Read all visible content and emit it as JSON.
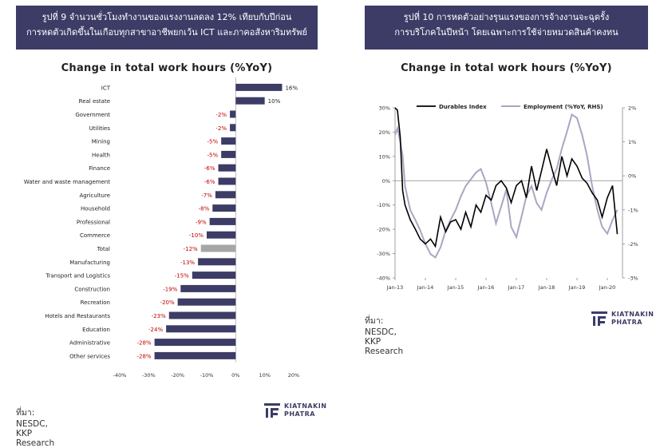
{
  "left": {
    "banner_line1": "รูปที่ 9 จำนวนชั่วโมงทำงานของแรงงานลดลง 12% เทียบกับปีก่อน",
    "banner_line2": "การหดตัวเกิดขึ้นในเกือบทุกสาขาอาชีพยกเว้น ICT และภาคอสังหาริมทรัพย์",
    "source": "ที่มา: NESDC, KKP Research",
    "logo_line1": "KIATNAKIN",
    "logo_line2": "PHATRA"
  },
  "right": {
    "banner_line1": "รูปที่ 10 การหดตัวอย่างรุนแรงของการจ้างงานจะฉุดรั้ง",
    "banner_line2": "การบริโภคในปีหน้า โดยเฉพาะการใช้จ่ายหมวดสินค้าคงทน",
    "source": "ที่มา: NESDC, KKP Research",
    "logo_line1": "KIATNAKIN",
    "logo_line2": "PHATRA"
  },
  "colors": {
    "banner": "#3d3c66",
    "bar": "#3d3c66",
    "bar_total": "#a6a6a6",
    "neg_label": "#c00000",
    "durables": "#000000",
    "employment": "#a9a6c2"
  },
  "chart_data": [
    {
      "type": "bar",
      "orientation": "horizontal",
      "title": "Change in total work hours (%YoY)",
      "categories": [
        "ICT",
        "Real estate",
        "Government",
        "Utilities",
        "Mining",
        "Health",
        "Finance",
        "Water and waste management",
        "Agriculture",
        "Household",
        "Professional",
        "Commerce",
        "Total",
        "Manufacturing",
        "Transport and Logistics",
        "Construction",
        "Recreation",
        "Hotels and Restaurants",
        "Education",
        "Administrative",
        "Other services"
      ],
      "values": [
        16,
        10,
        -2,
        -2,
        -5,
        -5,
        -6,
        -6,
        -7,
        -8,
        -9,
        -10,
        -12,
        -13,
        -15,
        -19,
        -20,
        -23,
        -24,
        -28,
        -28
      ],
      "data_labels": [
        "16%",
        "10%",
        "-2%",
        "-2%",
        "-5%",
        "-5%",
        "-6%",
        "-6%",
        "-7%",
        "-8%",
        "-9%",
        "-10%",
        "-12%",
        "-13%",
        "-15%",
        "-19%",
        "-20%",
        "-23%",
        "-24%",
        "-28%",
        "-28%"
      ],
      "highlight": "Total",
      "xlim": [
        -40,
        20
      ],
      "xticks": [
        -40,
        -30,
        -20,
        -10,
        0,
        10,
        20
      ],
      "xtick_labels": [
        "-40%",
        "-30%",
        "-20%",
        "-10%",
        "0%",
        "10%",
        "20%"
      ]
    },
    {
      "type": "line",
      "title": "Change in total work hours (%YoY)",
      "x_labels": [
        "Jan-13",
        "Jan-14",
        "Jan-15",
        "Jan-16",
        "Jan-17",
        "Jan-18",
        "Jan-19",
        "Jan-20"
      ],
      "x_range": [
        "2013-01",
        "2020-06"
      ],
      "ylim_left": [
        -40,
        30
      ],
      "yticks_left": [
        "30%",
        "20%",
        "10%",
        "0%",
        "-10%",
        "-20%",
        "-30%",
        "-40%"
      ],
      "ylim_right": [
        -3,
        2
      ],
      "yticks_right": [
        "2%",
        "1%",
        "0%",
        "-1%",
        "-2%",
        "-3%"
      ],
      "legend_position": "top",
      "series": [
        {
          "name": "Durables Index",
          "axis": "left",
          "t": [
            2013.0,
            2013.08,
            2013.17,
            2013.25,
            2013.33,
            2013.5,
            2013.67,
            2013.83,
            2014.0,
            2014.17,
            2014.33,
            2014.5,
            2014.67,
            2014.83,
            2015.0,
            2015.17,
            2015.33,
            2015.5,
            2015.67,
            2015.83,
            2016.0,
            2016.17,
            2016.33,
            2016.5,
            2016.67,
            2016.83,
            2017.0,
            2017.17,
            2017.33,
            2017.5,
            2017.67,
            2017.83,
            2018.0,
            2018.17,
            2018.33,
            2018.5,
            2018.67,
            2018.83,
            2019.0,
            2019.17,
            2019.33,
            2019.5,
            2019.67,
            2019.83,
            2020.0,
            2020.17,
            2020.33
          ],
          "values": [
            30,
            29,
            18,
            -4,
            -10,
            -16,
            -20,
            -24,
            -26,
            -24,
            -27,
            -15,
            -21,
            -17,
            -16,
            -20,
            -13,
            -19,
            -10,
            -13,
            -6,
            -8,
            -2,
            0,
            -3,
            -9,
            -2,
            0,
            -7,
            6,
            -4,
            4,
            13,
            5,
            -2,
            10,
            2,
            9,
            6,
            1,
            -1,
            -5,
            -8,
            -15,
            -7,
            -2,
            -22
          ]
        },
        {
          "name": "Employment (%YoY, RHS)",
          "axis": "right",
          "t": [
            2013.0,
            2013.08,
            2013.17,
            2013.25,
            2013.33,
            2013.5,
            2013.67,
            2013.83,
            2014.0,
            2014.17,
            2014.33,
            2014.5,
            2014.67,
            2014.83,
            2015.0,
            2015.17,
            2015.33,
            2015.5,
            2015.67,
            2015.83,
            2016.0,
            2016.17,
            2016.33,
            2016.5,
            2016.67,
            2016.83,
            2017.0,
            2017.17,
            2017.33,
            2017.5,
            2017.67,
            2017.83,
            2018.0,
            2018.17,
            2018.33,
            2018.5,
            2018.67,
            2018.83,
            2019.0,
            2019.17,
            2019.33,
            2019.5,
            2019.67,
            2019.83,
            2020.0,
            2020.17,
            2020.33
          ],
          "values": [
            1.2,
            1.4,
            1.0,
            0.6,
            -0.3,
            -1.0,
            -1.3,
            -1.6,
            -2.0,
            -2.3,
            -2.4,
            -2.1,
            -1.6,
            -1.3,
            -1.0,
            -0.6,
            -0.3,
            -0.1,
            0.1,
            0.2,
            -0.2,
            -0.8,
            -1.4,
            -0.9,
            -0.4,
            -1.5,
            -1.8,
            -1.2,
            -0.6,
            -0.3,
            -0.8,
            -1.0,
            -0.5,
            -0.1,
            0.2,
            0.8,
            1.3,
            1.8,
            1.7,
            1.2,
            0.6,
            -0.3,
            -1.0,
            -1.5,
            -1.7,
            -1.3,
            -1.0
          ]
        }
      ]
    }
  ]
}
